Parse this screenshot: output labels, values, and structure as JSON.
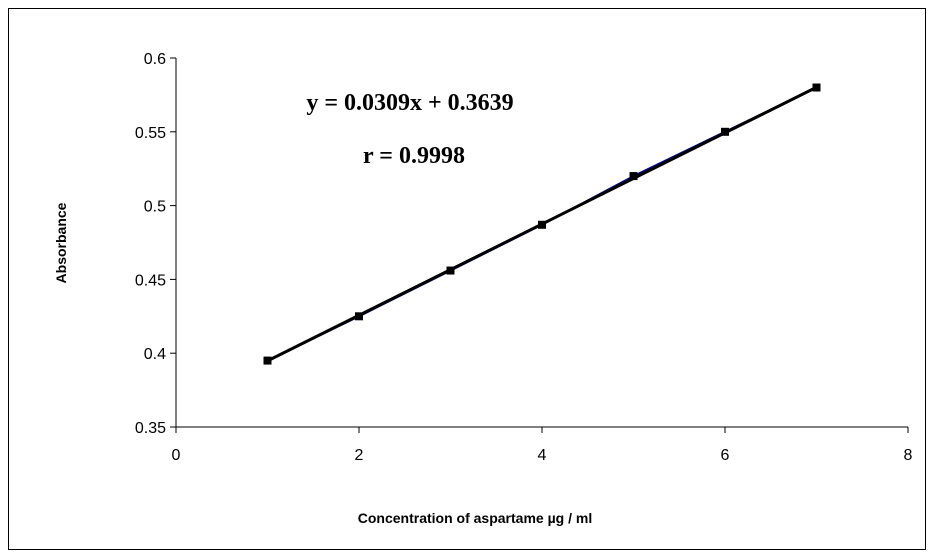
{
  "chart_data": {
    "type": "scatter",
    "title": "",
    "xlabel": "Concentration  of aspartame  µg / ml",
    "ylabel": "Absorbance",
    "xlim": [
      0,
      8
    ],
    "ylim": [
      0.35,
      0.6
    ],
    "x_ticks": [
      {
        "value": 0,
        "label": "0"
      },
      {
        "value": 2,
        "label": "2"
      },
      {
        "value": 4,
        "label": "4"
      },
      {
        "value": 6,
        "label": "6"
      },
      {
        "value": 8,
        "label": "8"
      }
    ],
    "y_ticks": [
      {
        "value": 0.35,
        "label": "0.35"
      },
      {
        "value": 0.4,
        "label": "0.4"
      },
      {
        "value": 0.45,
        "label": "0.45"
      },
      {
        "value": 0.5,
        "label": "0.5"
      },
      {
        "value": 0.55,
        "label": "0.55"
      },
      {
        "value": 0.6,
        "label": "0.6"
      }
    ],
    "grid": false,
    "series": [
      {
        "x": [
          1,
          2,
          3,
          4,
          5,
          6,
          7
        ],
        "y": [
          0.395,
          0.425,
          0.456,
          0.487,
          0.52,
          0.55,
          0.58
        ],
        "marker": "square",
        "color": "#000080"
      }
    ],
    "trendline": {
      "slope": 0.0309,
      "intercept": 0.3639,
      "x_range": [
        1,
        7
      ],
      "color": "#000000"
    },
    "annotations": [
      "y = 0.0309x + 0.3639",
      "r = 0.9998"
    ]
  }
}
